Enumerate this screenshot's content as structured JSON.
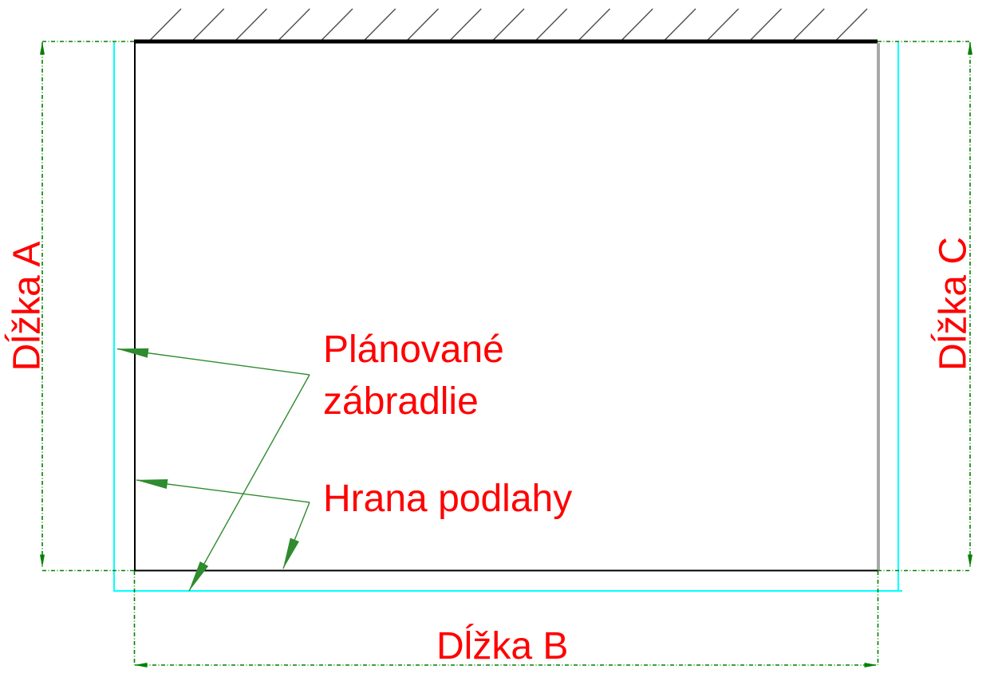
{
  "colors": {
    "background": "#ffffff",
    "label_text": "#ff0000",
    "wall_line": "#000000",
    "floor_edge_line": "#000000",
    "floor_edge_right_line": "#a8a8a8",
    "hatch_line": "#4d4d4d",
    "planned_railing_line": "#00ffff",
    "dimension_line": "#008000",
    "leader_arrow": "#2e8b2e"
  },
  "drawing": {
    "dimensions": {
      "a": {
        "label": "Dĺžka A"
      },
      "b": {
        "label": "Dĺžka B"
      },
      "c": {
        "label": "Dĺžka C"
      }
    },
    "annotations": {
      "planned_railing": {
        "line1": "Plánované",
        "line2": "zábradlie"
      },
      "floor_edge": {
        "label": "Hrana podlahy"
      }
    }
  }
}
